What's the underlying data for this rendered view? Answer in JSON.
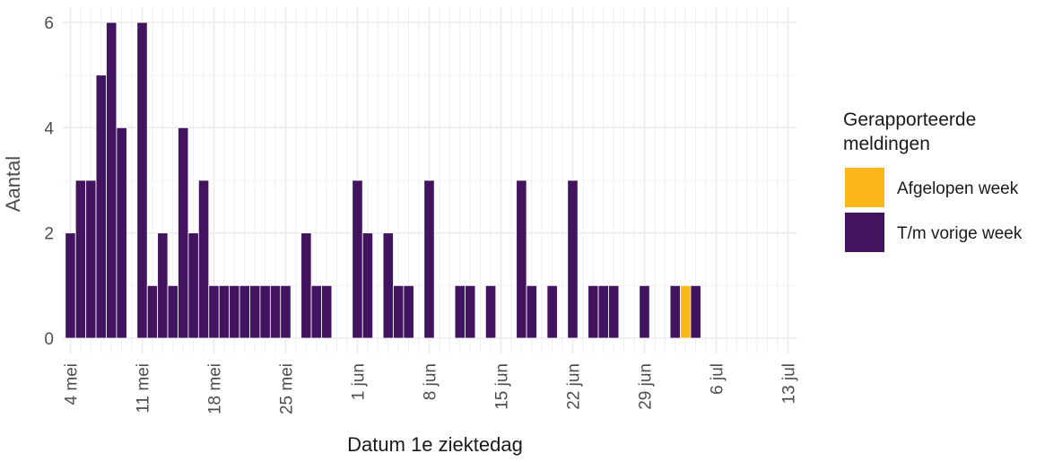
{
  "chart_data": {
    "type": "bar",
    "stacked": true,
    "x_label": "Datum 1e ziektedag",
    "y_label": "Aantal",
    "legend_title": "Gerapporteerde meldingen",
    "categories": [
      "4 mei",
      null,
      null,
      null,
      null,
      null,
      null,
      "11 mei",
      null,
      null,
      null,
      null,
      null,
      null,
      "18 mei",
      null,
      null,
      null,
      null,
      null,
      null,
      "25 mei",
      null,
      null,
      null,
      null,
      null,
      null,
      "1 jun",
      null,
      null,
      null,
      null,
      null,
      null,
      "8 jun",
      null,
      null,
      null,
      null,
      null,
      null,
      "15 jun",
      null,
      null,
      null,
      null,
      null,
      null,
      "22 jun",
      null,
      null,
      null,
      null,
      null,
      null,
      "29 jun",
      null,
      null,
      null,
      null,
      null,
      null,
      "6 jul",
      null,
      null,
      null,
      null,
      null,
      null,
      "13 jul"
    ],
    "series": [
      {
        "name": "Afgelopen week",
        "color": "#fbb61a",
        "values": [
          0,
          0,
          0,
          0,
          0,
          0,
          0,
          0,
          0,
          0,
          0,
          0,
          0,
          0,
          0,
          0,
          0,
          0,
          0,
          0,
          0,
          0,
          0,
          0,
          0,
          0,
          0,
          0,
          0,
          0,
          0,
          0,
          0,
          0,
          0,
          0,
          0,
          0,
          0,
          0,
          0,
          0,
          0,
          0,
          0,
          0,
          0,
          0,
          0,
          0,
          0,
          0,
          0,
          0,
          0,
          0,
          0,
          0,
          0,
          0,
          1,
          0,
          0,
          0,
          0,
          0,
          0,
          0,
          0,
          0,
          0
        ]
      },
      {
        "name": "T/m vorige week",
        "color": "#42145f",
        "values": [
          2,
          3,
          3,
          5,
          6,
          4,
          0,
          6,
          1,
          2,
          1,
          4,
          2,
          3,
          1,
          1,
          1,
          1,
          1,
          1,
          1,
          1,
          0,
          2,
          1,
          1,
          0,
          0,
          3,
          2,
          0,
          2,
          1,
          1,
          0,
          3,
          0,
          0,
          1,
          1,
          0,
          1,
          0,
          0,
          3,
          1,
          0,
          1,
          0,
          3,
          0,
          1,
          1,
          1,
          0,
          0,
          1,
          0,
          0,
          1,
          0,
          1,
          0,
          0,
          0,
          0,
          0,
          0,
          0,
          0,
          0
        ]
      }
    ],
    "ylim": [
      0,
      6
    ],
    "yticks": [
      0,
      2,
      4,
      6
    ],
    "grid": true
  }
}
